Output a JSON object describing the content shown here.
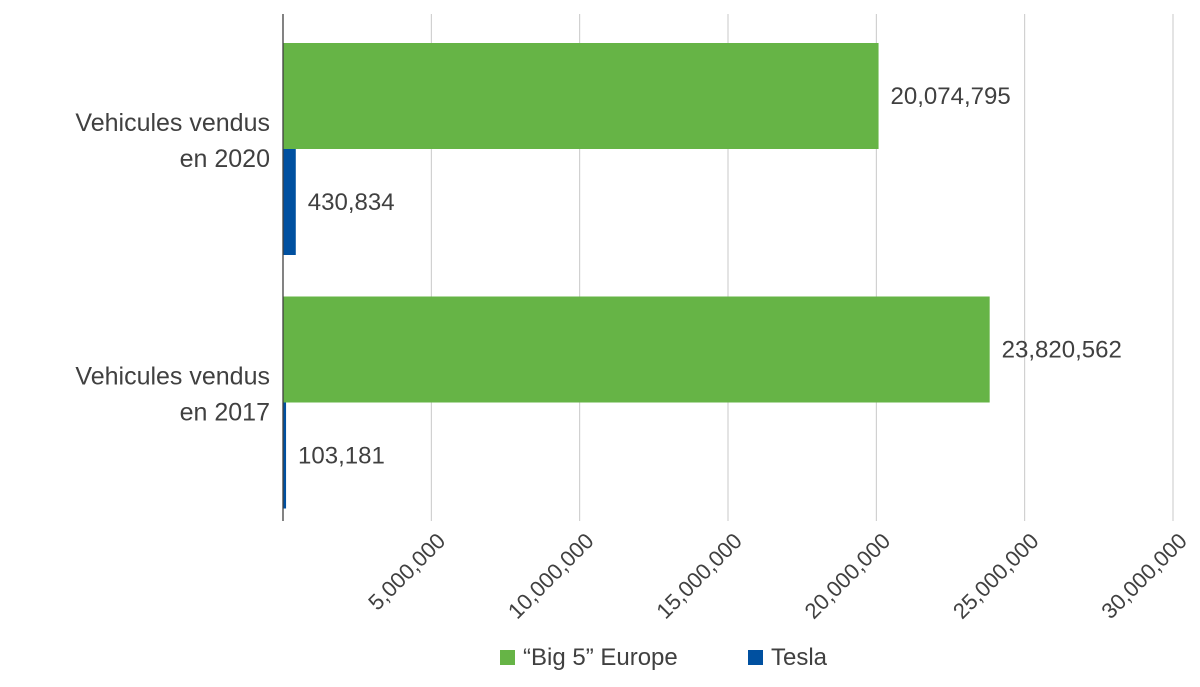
{
  "chart_data": {
    "type": "bar",
    "orientation": "horizontal",
    "categories": [
      [
        "Vehicules vendus",
        "en 2020"
      ],
      [
        "Vehicules vendus",
        "en 2017"
      ]
    ],
    "series": [
      {
        "name": "“Big 5” Europe",
        "values": [
          20074795,
          23820562
        ],
        "labels": [
          "20,074,795",
          "23,820,562"
        ],
        "color": "#66b446"
      },
      {
        "name": "Tesla",
        "values": [
          430834,
          103181
        ],
        "labels": [
          "430,834",
          "103,181"
        ],
        "color": "#0050a0"
      }
    ],
    "x_ticks": [
      5000000,
      10000000,
      15000000,
      20000000,
      25000000,
      30000000
    ],
    "x_tick_labels": [
      "5,000,000",
      "10,000,000",
      "15,000,000",
      "20,000,000",
      "25,000,000",
      "30,000,000"
    ],
    "xlim": [
      0,
      30000000
    ],
    "grid": true,
    "legend_position": "bottom",
    "colors": {
      "grid": "#c8c8c8",
      "axis": "#404040",
      "text": "#404040"
    }
  }
}
